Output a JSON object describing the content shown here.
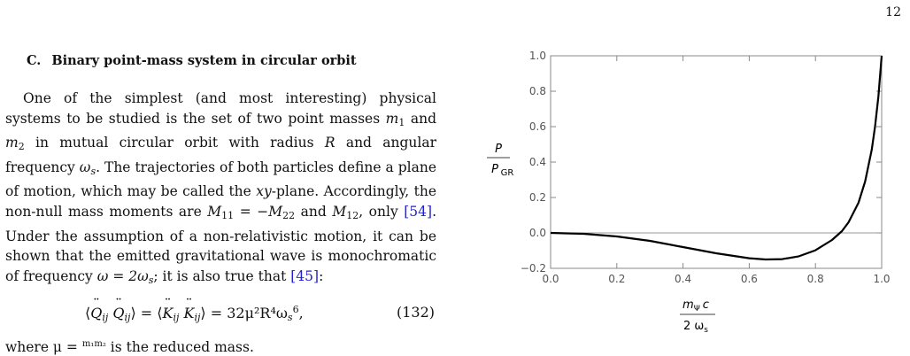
{
  "page": {
    "number": "12"
  },
  "section": {
    "number": "C.",
    "title": "Binary point-mass system in circular orbit"
  },
  "paragraph": {
    "s1": "One of the simplest (and most interesting) physical systems to be studied is the set of two point masses ",
    "m1": "m",
    "s2": " and ",
    "m2": "m",
    "s3": " in mutual circular orbit with radius ",
    "R": "R",
    "s4": " and angular frequency ",
    "ws": "ω",
    "s5": ". The trajectories of both particles define a plane of motion, which may be called the ",
    "xy": "xy",
    "s6": "-plane. Accordingly, the non-null mass moments are ",
    "M11": "M",
    "s7": " = −",
    "M22": "M",
    "s8": " and ",
    "M12": "M",
    "s9": ", only ",
    "cite1": "[54]",
    "s10": ". Under the assumption of a non-relativistic motion, it can be shown that the emitted gravitational wave is monochromatic of frequency ",
    "omega": "ω = 2ω",
    "s11": "; it is also true that ",
    "cite2": "[45]",
    "s12": ":"
  },
  "equation": {
    "rhs": "= 32μ²R⁴ω",
    "number": "(132)"
  },
  "tail": {
    "text": "where μ = ",
    "frac": "m₁m₂",
    "rest": " is the reduced mass."
  },
  "chart_data": {
    "type": "line",
    "xlabel_num": "m",
    "xlabel_num_sub": "Ψ",
    "xlabel_num_c": "c",
    "xlabel_den": "2 ω",
    "xlabel_den_sub": "s",
    "ylabel_num": "P",
    "ylabel_den": "P",
    "ylabel_den_sub": "GR",
    "xlim": [
      0.0,
      1.0
    ],
    "ylim": [
      -0.2,
      1.0
    ],
    "xticks": [
      "0.0",
      "0.2",
      "0.4",
      "0.6",
      "0.8",
      "1.0"
    ],
    "yticks": [
      "-0.2",
      "0.0",
      "0.2",
      "0.4",
      "0.6",
      "0.8",
      "1.0"
    ],
    "series": [
      {
        "x": [
          0.0,
          0.1,
          0.2,
          0.3,
          0.4,
          0.5,
          0.6,
          0.65,
          0.7,
          0.75,
          0.8,
          0.85,
          0.88,
          0.9,
          0.93,
          0.95,
          0.97,
          0.98,
          0.99,
          1.0
        ],
        "y": [
          0.0,
          -0.005,
          -0.02,
          -0.045,
          -0.08,
          -0.115,
          -0.143,
          -0.15,
          -0.148,
          -0.132,
          -0.098,
          -0.04,
          0.01,
          0.06,
          0.17,
          0.29,
          0.47,
          0.6,
          0.77,
          1.0
        ]
      }
    ],
    "colors": {
      "curve": "#000000",
      "axis": "#888888",
      "zero_line": "#999999"
    }
  }
}
